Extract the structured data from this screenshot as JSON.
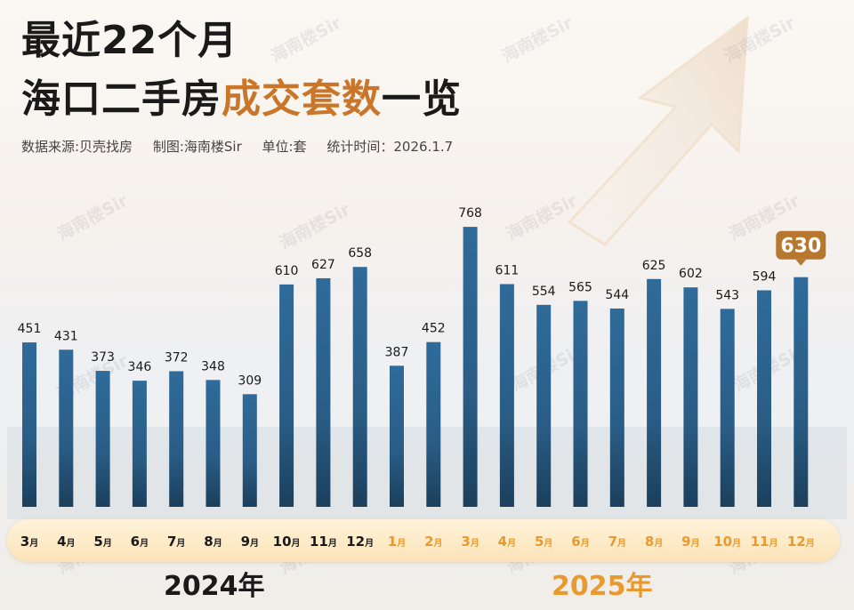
{
  "header": {
    "title_line1": "最近22个月",
    "title_line2_part1": "海口二手房",
    "title_line2_highlight": "成交套数",
    "title_line2_part2": "一览",
    "meta": {
      "source": "数据来源:贝壳找房",
      "producer": "制图:海南楼Sir",
      "unit": "单位:套",
      "date": "统计时间：2026.1.7"
    }
  },
  "watermark": "海南楼Sir",
  "years": {
    "y2024": "2024年",
    "y2025": "2025年"
  },
  "colors": {
    "bar_top": "#2f6b9a",
    "bar_bottom": "#1b3f5c",
    "label_dark": "#1a1a1a",
    "accent_orange": "#e99a2e",
    "highlight_tag": "#b7772e",
    "title_highlight": "#c9762a"
  },
  "chart_data": {
    "type": "bar",
    "title": "",
    "xlabel": "",
    "ylabel": "",
    "categories": [
      "3月",
      "4月",
      "5月",
      "6月",
      "7月",
      "8月",
      "9月",
      "10月",
      "11月",
      "12月",
      "1月",
      "2月",
      "3月",
      "4月",
      "5月",
      "6月",
      "7月",
      "8月",
      "9月",
      "10月",
      "11月",
      "12月"
    ],
    "groups": [
      "2024年",
      "2024年",
      "2024年",
      "2024年",
      "2024年",
      "2024年",
      "2024年",
      "2024年",
      "2024年",
      "2024年",
      "2025年",
      "2025年",
      "2025年",
      "2025年",
      "2025年",
      "2025年",
      "2025年",
      "2025年",
      "2025年",
      "2025年",
      "2025年",
      "2025年"
    ],
    "values": [
      451,
      431,
      373,
      346,
      372,
      348,
      309,
      610,
      627,
      658,
      387,
      452,
      768,
      611,
      554,
      565,
      544,
      625,
      602,
      543,
      594,
      630
    ],
    "highlight_index": 21,
    "ylim": [
      0,
      800
    ],
    "legend": "none",
    "grid": false
  }
}
